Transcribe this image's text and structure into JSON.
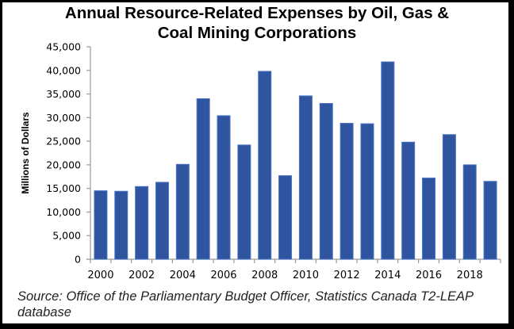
{
  "chart_data": {
    "type": "bar",
    "title_lines": [
      "Annual Resource-Related Expenses by Oil, Gas &",
      "Coal Mining Corporations"
    ],
    "title": "Annual Resource-Related Expenses by Oil, Gas & Coal Mining Corporations",
    "xlabel": "",
    "ylabel": "Millions of Dollars",
    "ylim": [
      0,
      45000
    ],
    "yticks": [
      0,
      5000,
      10000,
      15000,
      20000,
      25000,
      30000,
      35000,
      40000,
      45000
    ],
    "ytick_labels": [
      "0",
      "5,000",
      "10,000",
      "15,000",
      "20,000",
      "25,000",
      "30,000",
      "35,000",
      "40,000",
      "45,000"
    ],
    "categories": [
      "2000",
      "2001",
      "2002",
      "2003",
      "2004",
      "2005",
      "2006",
      "2007",
      "2008",
      "2009",
      "2010",
      "2011",
      "2012",
      "2013",
      "2014",
      "2015",
      "2016",
      "2017",
      "2018",
      "2019"
    ],
    "xtick_labels_shown": [
      "2000",
      "2002",
      "2004",
      "2006",
      "2008",
      "2010",
      "2012",
      "2014",
      "2016",
      "2018"
    ],
    "values": [
      14500,
      14400,
      15400,
      16300,
      20100,
      34000,
      30400,
      24200,
      39800,
      17700,
      34600,
      33000,
      28800,
      28700,
      41800,
      24800,
      17200,
      26400,
      20000,
      16500
    ],
    "grid": false,
    "legend": "none",
    "bar_color": "#2F55A0",
    "bar_edge_color": "#4A74C4"
  },
  "source_note": "Source: Office of the Parliamentary Budget Officer, Statistics Canada T2-LEAP database"
}
